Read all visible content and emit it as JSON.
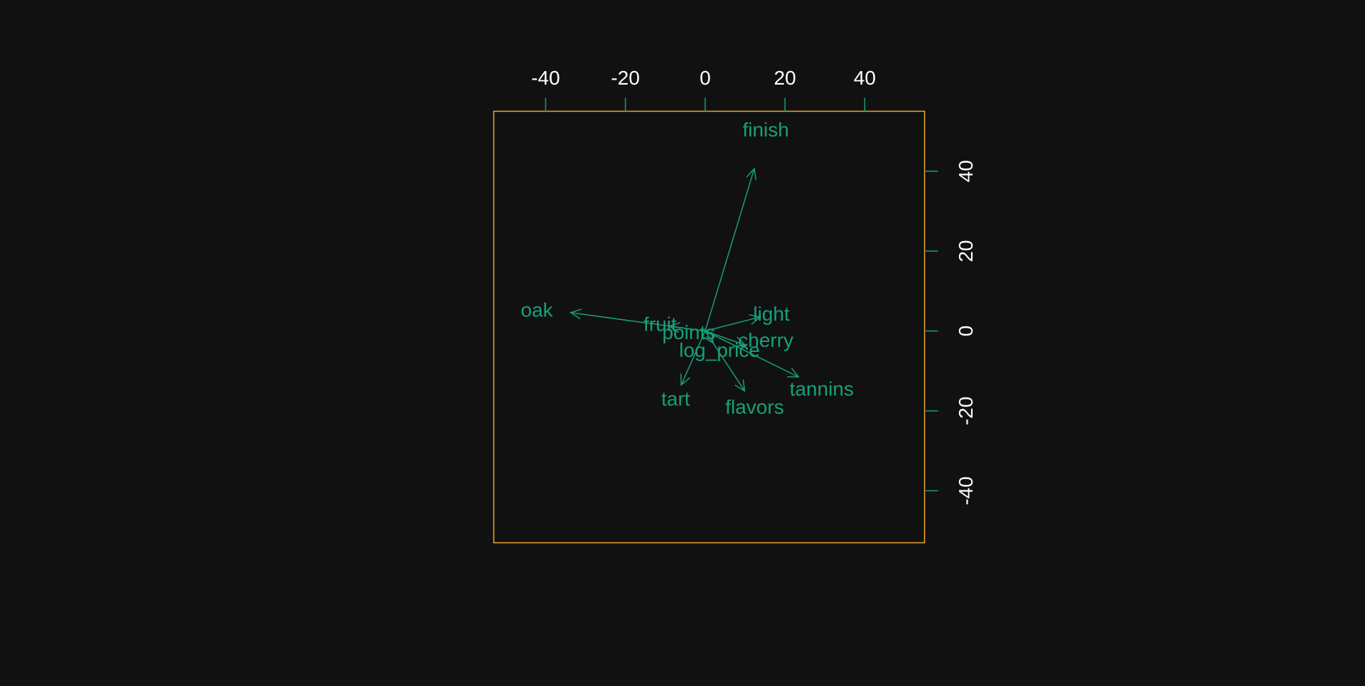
{
  "chart_data": {
    "type": "biplot",
    "title": "",
    "xlabel": "",
    "ylabel": "",
    "xlim": [
      -53,
      55
    ],
    "ylim": [
      -53,
      55
    ],
    "x_ticks": [
      -40,
      -20,
      0,
      20,
      40
    ],
    "y_ticks": [
      -40,
      -20,
      0,
      20,
      40
    ],
    "x_tick_labels": [
      "-40",
      "-20",
      "0",
      "20",
      "40"
    ],
    "y_tick_labels": [
      "-40",
      "-20",
      "0",
      "20",
      "40"
    ],
    "x_axis_position": "top",
    "y_axis_position": "right",
    "grid": false,
    "vectors": [
      {
        "label": "finish",
        "x": 12.3,
        "y": 40.6
      },
      {
        "label": "oak",
        "x": -33.7,
        "y": 4.6
      },
      {
        "label": "fruit",
        "x": -9.0,
        "y": 1.2
      },
      {
        "label": "points",
        "x": 0.0,
        "y": 0.0
      },
      {
        "label": "light",
        "x": 13.8,
        "y": 3.5
      },
      {
        "label": "cherry",
        "x": 10.0,
        "y": -3.5
      },
      {
        "label": "log_price",
        "x": 2.0,
        "y": -3.0
      },
      {
        "label": "tannins",
        "x": 23.4,
        "y": -11.5
      },
      {
        "label": "tart",
        "x": -6.0,
        "y": -13.5
      },
      {
        "label": "flavors",
        "x": 9.9,
        "y": -15.0
      }
    ],
    "label_positions": [
      {
        "label": "finish",
        "x": 15.2,
        "y": 50.4
      },
      {
        "label": "oak",
        "x": -42.2,
        "y": 5.3
      },
      {
        "label": "fruit",
        "x": -11.3,
        "y": 1.7
      },
      {
        "label": "points",
        "x": -4.1,
        "y": -0.3
      },
      {
        "label": "light",
        "x": 16.6,
        "y": 4.3
      },
      {
        "label": "cherry",
        "x": 15.2,
        "y": -2.3
      },
      {
        "label": "log_price",
        "x": 3.6,
        "y": -4.8
      },
      {
        "label": "tannins",
        "x": 29.2,
        "y": -14.5
      },
      {
        "label": "tart",
        "x": -7.4,
        "y": -17.0
      },
      {
        "label": "flavors",
        "x": 12.4,
        "y": -19.0
      }
    ]
  },
  "colors": {
    "background": "#111111",
    "frame": "#f2a72c",
    "vector": "#16a079",
    "tick": "#16a079",
    "axis_text": "#ffffff"
  }
}
